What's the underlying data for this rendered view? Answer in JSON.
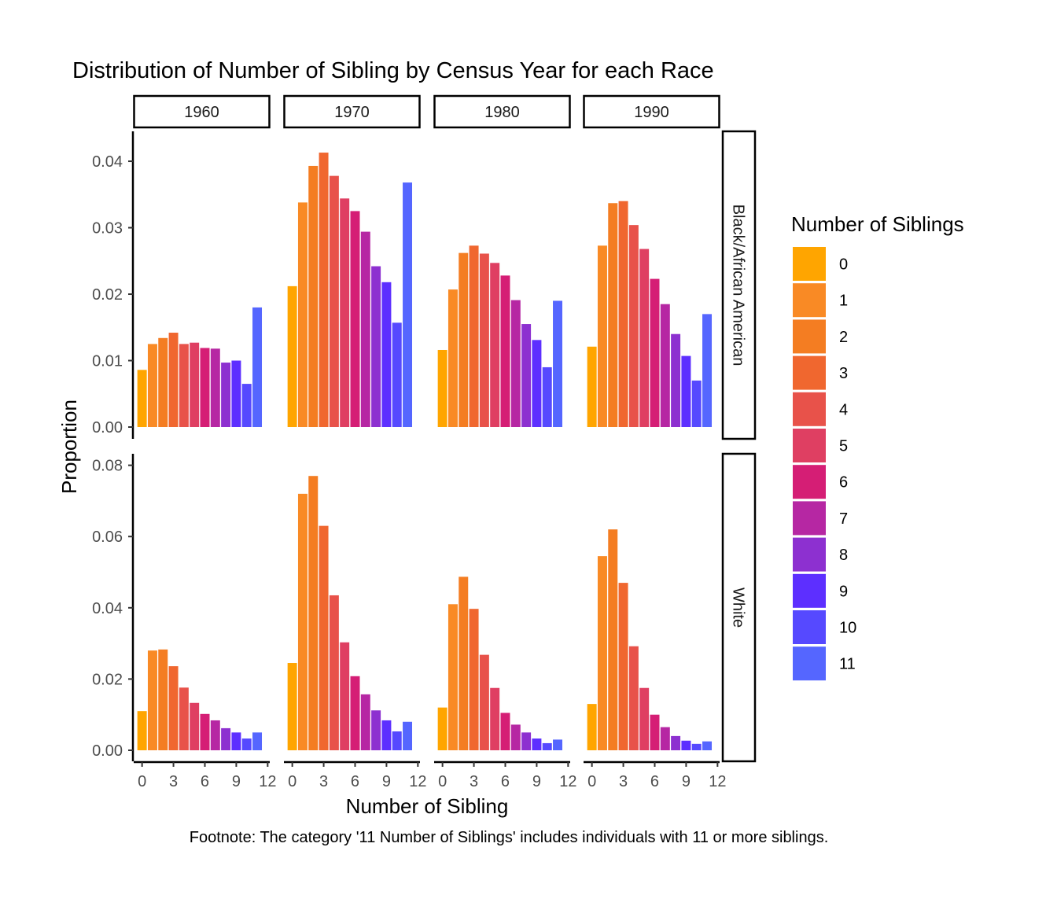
{
  "chart_data": {
    "type": "bar",
    "title": "Distribution of Number of Sibling by Census Year for each Race",
    "xlabel": "Number of Sibling",
    "ylabel": "Proportion",
    "footnote": "Footnote: The category '11 Number of Siblings' includes individuals with 11 or more siblings.",
    "legend_title": "Number of Siblings",
    "categories": [
      "0",
      "1",
      "2",
      "3",
      "4",
      "5",
      "6",
      "7",
      "8",
      "9",
      "10",
      "11"
    ],
    "colors": [
      "#FFA500",
      "#F98A25",
      "#F47D22",
      "#F0672F",
      "#E8524A",
      "#DF3F62",
      "#D51E75",
      "#B627A3",
      "#8D30D0",
      "#5D2FFF",
      "#5649FF",
      "#5566FF"
    ],
    "x_ticks": [
      "0",
      "3",
      "6",
      "9",
      "12"
    ],
    "x_tick_values": [
      0,
      3,
      6,
      9,
      12
    ],
    "xlim": [
      -0.8,
      12.2
    ],
    "columns": [
      "1960",
      "1970",
      "1980",
      "1990"
    ],
    "rows": [
      {
        "name": "Black/African American",
        "ylim": [
          0,
          0.0432
        ],
        "y_ticks": [
          "0.00",
          "0.01",
          "0.02",
          "0.03",
          "0.04"
        ],
        "y_tick_values": [
          0,
          0.01,
          0.02,
          0.03,
          0.04
        ],
        "series": [
          {
            "name": "1960",
            "values": [
              0.0086,
              0.0125,
              0.0134,
              0.0142,
              0.0125,
              0.0127,
              0.0119,
              0.0118,
              0.0097,
              0.01,
              0.0065,
              0.018
            ]
          },
          {
            "name": "1970",
            "values": [
              0.0212,
              0.0338,
              0.0393,
              0.0413,
              0.0378,
              0.0344,
              0.0325,
              0.0294,
              0.0242,
              0.0218,
              0.0157,
              0.0368
            ]
          },
          {
            "name": "1980",
            "values": [
              0.0116,
              0.0207,
              0.0262,
              0.0273,
              0.0261,
              0.0247,
              0.0228,
              0.0191,
              0.0155,
              0.0131,
              0.009,
              0.019
            ]
          },
          {
            "name": "1990",
            "values": [
              0.0121,
              0.0273,
              0.0337,
              0.034,
              0.0304,
              0.0268,
              0.0223,
              0.0185,
              0.014,
              0.0107,
              0.007,
              0.017
            ]
          }
        ]
      },
      {
        "name": "White",
        "ylim": [
          0,
          0.0808
        ],
        "y_ticks": [
          "0.00",
          "0.02",
          "0.04",
          "0.06",
          "0.08"
        ],
        "y_tick_values": [
          0,
          0.02,
          0.04,
          0.06,
          0.08
        ],
        "series": [
          {
            "name": "1960",
            "values": [
              0.011,
              0.028,
              0.0283,
              0.0236,
              0.0176,
              0.0133,
              0.0102,
              0.0084,
              0.0062,
              0.005,
              0.0033,
              0.005
            ]
          },
          {
            "name": "1970",
            "values": [
              0.0245,
              0.072,
              0.077,
              0.063,
              0.0435,
              0.0303,
              0.0208,
              0.0157,
              0.0112,
              0.0084,
              0.0053,
              0.008
            ]
          },
          {
            "name": "1980",
            "values": [
              0.012,
              0.041,
              0.0487,
              0.0397,
              0.0268,
              0.0175,
              0.0105,
              0.0072,
              0.005,
              0.0033,
              0.002,
              0.003
            ]
          },
          {
            "name": "1990",
            "values": [
              0.013,
              0.0545,
              0.062,
              0.047,
              0.0292,
              0.0175,
              0.01,
              0.0065,
              0.004,
              0.0027,
              0.0018,
              0.0025
            ]
          }
        ]
      }
    ]
  }
}
